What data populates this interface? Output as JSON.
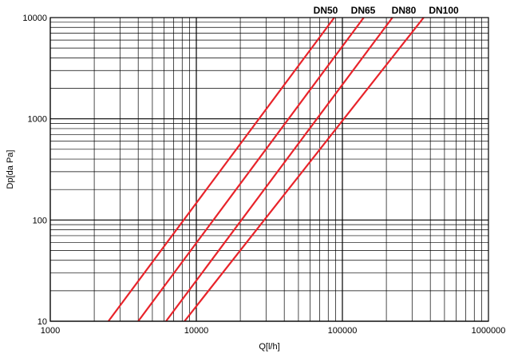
{
  "chart_data": {
    "type": "line",
    "log_x": true,
    "log_y": true,
    "grid": true,
    "title": "",
    "xlabel": "Q[l/h]",
    "ylabel": "Dp[da Pa]",
    "xlim": [
      1000,
      1000000
    ],
    "ylim": [
      10,
      10000
    ],
    "x_tick_labels": [
      "1000",
      "10000",
      "100000",
      "1000000"
    ],
    "y_tick_labels": [
      "10",
      "100",
      "1000",
      "10000"
    ],
    "line_color": "#e8232a",
    "series": [
      {
        "name": "DN50",
        "x": [
          2500,
          88000
        ],
        "y": [
          10,
          10000
        ]
      },
      {
        "name": "DN65",
        "x": [
          4000,
          140000
        ],
        "y": [
          10,
          10000
        ]
      },
      {
        "name": "DN80",
        "x": [
          6200,
          220000
        ],
        "y": [
          10,
          10000
        ]
      },
      {
        "name": "DN100",
        "x": [
          8300,
          360000
        ],
        "y": [
          10,
          10000
        ]
      }
    ],
    "legend_placement": "top, above line ends"
  }
}
